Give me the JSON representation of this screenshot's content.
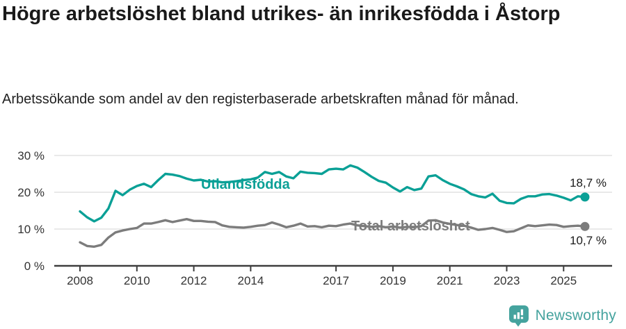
{
  "header": {
    "title": "Högre arbetslöshet bland utrikes- än inrikesfödda i Åstorp",
    "subtitle": "Arbetssökande som andel av den registerbaserade arbetskraften månad för månad."
  },
  "footer": {
    "brand": "Newsworthy",
    "logo_icon": "bar-chart-speech-bubble-icon"
  },
  "colors": {
    "foreign_line": "#0aa096",
    "total_line": "#7c7c7c",
    "grid": "#dcdcdc",
    "axis": "#3d3d3d",
    "tick_text": "#333333",
    "title_text": "#1a1a1a",
    "brand_teal": "#45a39e",
    "background": "#ffffff"
  },
  "chart_data": {
    "type": "line",
    "title": "Högre arbetslöshet bland utrikes- än inrikesfödda i Åstorp",
    "subtitle": "Arbetssökande som andel av den registerbaserade arbetskraften månad för månad.",
    "unit": "%",
    "xlabel": "",
    "ylabel": "",
    "ylim": [
      0,
      30
    ],
    "xlim": [
      2007.1,
      2026.4
    ],
    "grid": "horizontal",
    "legend": "inline-labels",
    "y_ticks": [
      {
        "value": 0,
        "label": "0 %"
      },
      {
        "value": 10,
        "label": "10 %"
      },
      {
        "value": 20,
        "label": "20 %"
      },
      {
        "value": 30,
        "label": "30 %"
      }
    ],
    "x_ticks": [
      {
        "value": 2008,
        "label": "2008"
      },
      {
        "value": 2010,
        "label": "2010"
      },
      {
        "value": 2012,
        "label": "2012"
      },
      {
        "value": 2014,
        "label": "2014"
      },
      {
        "value": 2017,
        "label": "2017"
      },
      {
        "value": 2019,
        "label": "2019"
      },
      {
        "value": 2021,
        "label": "2021"
      },
      {
        "value": 2023,
        "label": "2023"
      },
      {
        "value": 2025,
        "label": "2025"
      }
    ],
    "x": [
      2008.0,
      2008.25,
      2008.5,
      2008.75,
      2009.0,
      2009.25,
      2009.5,
      2009.75,
      2010.0,
      2010.25,
      2010.5,
      2010.75,
      2011.0,
      2011.25,
      2011.5,
      2011.75,
      2012.0,
      2012.25,
      2012.5,
      2012.75,
      2013.0,
      2013.25,
      2013.5,
      2013.75,
      2014.0,
      2014.25,
      2014.5,
      2014.75,
      2015.0,
      2015.25,
      2015.5,
      2015.75,
      2016.0,
      2016.25,
      2016.5,
      2016.75,
      2017.0,
      2017.25,
      2017.5,
      2017.75,
      2018.0,
      2018.25,
      2018.5,
      2018.75,
      2019.0,
      2019.25,
      2019.5,
      2019.75,
      2020.0,
      2020.25,
      2020.5,
      2020.75,
      2021.0,
      2021.25,
      2021.5,
      2021.75,
      2022.0,
      2022.25,
      2022.5,
      2022.75,
      2023.0,
      2023.25,
      2023.5,
      2023.75,
      2024.0,
      2024.25,
      2024.5,
      2024.75,
      2025.0,
      2025.25,
      2025.5,
      2025.75
    ],
    "series": [
      {
        "name": "Utlandsfödda",
        "color": "#0aa096",
        "end_value": 18.7,
        "end_label": "18,7 %",
        "values": [
          14.8,
          13.2,
          12.1,
          13.1,
          15.6,
          20.4,
          19.2,
          20.7,
          21.7,
          22.3,
          21.4,
          23.3,
          25.0,
          24.8,
          24.4,
          23.7,
          23.2,
          23.4,
          22.9,
          23.0,
          22.7,
          22.8,
          23.0,
          23.3,
          23.5,
          24.0,
          25.5,
          25.0,
          25.5,
          24.3,
          23.8,
          25.6,
          25.3,
          25.2,
          25.0,
          26.2,
          26.4,
          26.2,
          27.3,
          26.7,
          25.5,
          24.2,
          23.1,
          22.6,
          21.3,
          20.2,
          21.4,
          20.6,
          21.0,
          24.3,
          24.6,
          23.3,
          22.3,
          21.6,
          20.8,
          19.5,
          18.9,
          18.6,
          19.6,
          17.7,
          17.1,
          17.0,
          18.2,
          18.9,
          18.9,
          19.4,
          19.5,
          19.1,
          18.5,
          17.8,
          18.9,
          18.7
        ]
      },
      {
        "name": "Total arbetslöshet",
        "color": "#7c7c7c",
        "end_value": 10.7,
        "end_label": "10,7 %",
        "values": [
          6.4,
          5.4,
          5.2,
          5.7,
          7.7,
          9.1,
          9.6,
          10.0,
          10.3,
          11.5,
          11.5,
          11.9,
          12.4,
          11.9,
          12.3,
          12.7,
          12.2,
          12.2,
          12.0,
          11.9,
          11.0,
          10.6,
          10.5,
          10.4,
          10.6,
          10.9,
          11.1,
          11.8,
          11.2,
          10.5,
          10.9,
          11.5,
          10.7,
          10.8,
          10.5,
          10.9,
          10.8,
          11.2,
          11.5,
          11.0,
          10.8,
          10.6,
          10.8,
          10.5,
          10.7,
          10.4,
          10.6,
          10.5,
          10.8,
          12.3,
          12.4,
          11.8,
          11.4,
          11.1,
          10.9,
          10.4,
          9.8,
          10.0,
          10.3,
          9.8,
          9.2,
          9.4,
          10.2,
          11.0,
          10.8,
          11.0,
          11.2,
          11.1,
          10.6,
          10.8,
          10.9,
          10.7
        ]
      }
    ]
  }
}
